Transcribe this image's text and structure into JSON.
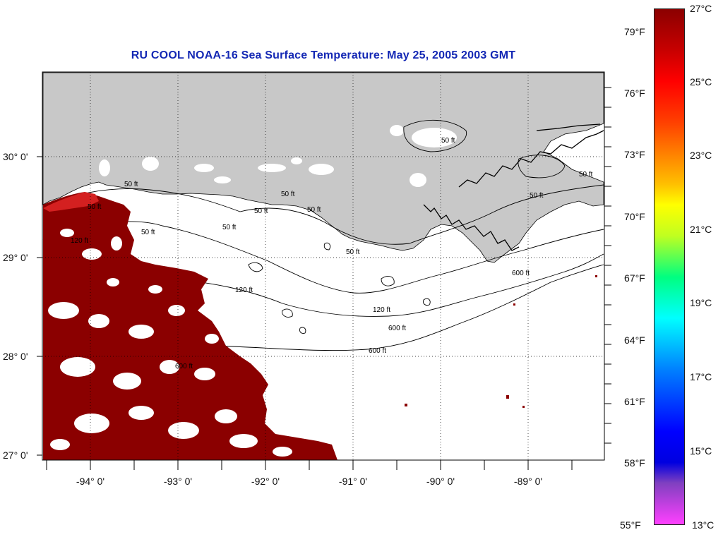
{
  "title": "RU COOL  NOAA-16  Sea Surface Temperature:  May 25, 2005 2003 GMT",
  "latitude_labels": [
    "30° 0'",
    "29° 0'",
    "28° 0'",
    "27° 0'"
  ],
  "longitude_labels": [
    "-94° 0'",
    "-93° 0'",
    "-92° 0'",
    "-91° 0'",
    "-90° 0'",
    "-89° 0'"
  ],
  "contour_labels": [
    "50 ft",
    "50 ft",
    "50 ft",
    "50 ft",
    "50 ft",
    "50 ft",
    "50 ft",
    "50 ft",
    "50 ft",
    "50 ft",
    "120 ft",
    "120 ft",
    "120 ft",
    "600 ft",
    "600 ft",
    "600 ft",
    "600 ft",
    "50 ft"
  ],
  "colorbar": {
    "fahrenheit_labels": [
      "79°F",
      "76°F",
      "73°F",
      "70°F",
      "67°F",
      "64°F",
      "61°F",
      "58°F",
      "55°F"
    ],
    "celsius_labels": [
      "27°C",
      "25°C",
      "23°C",
      "21°C",
      "19°C",
      "17°C",
      "15°C",
      "13°C"
    ],
    "gradient_colors": [
      "#8b0000",
      "#ff0000",
      "#ff8000",
      "#ffff00",
      "#00ff80",
      "#00ffff",
      "#0080ff",
      "#0000ff",
      "#8040c0",
      "#ff40ff"
    ]
  },
  "colors": {
    "land": "#c8c8c8",
    "sst_warm": "#8b0000",
    "title": "#1428b4"
  }
}
